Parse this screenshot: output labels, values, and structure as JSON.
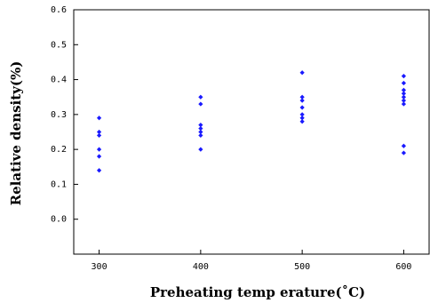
{
  "chart_data": {
    "type": "scatter",
    "title": "",
    "xlabel": "Preheating temp erature(˚C)",
    "ylabel": "Relative density(%)",
    "xlim": [
      275,
      625
    ],
    "ylim": [
      -0.1,
      0.6
    ],
    "x_ticks": [
      300,
      400,
      500,
      600
    ],
    "x_tick_labels": [
      "300",
      "400",
      "500",
      "600"
    ],
    "y_ticks": [
      0.0,
      0.1,
      0.2,
      0.3,
      0.4,
      0.5,
      0.6
    ],
    "y_tick_labels": [
      "0.0",
      "0.1",
      "0.2",
      "0.3",
      "0.4",
      "0.5",
      "0.6"
    ],
    "grid": false,
    "marker_color": "#1a1aff",
    "series": [
      {
        "points": [
          [
            300,
            0.29
          ],
          [
            300,
            0.25
          ],
          [
            300,
            0.24
          ],
          [
            300,
            0.2
          ],
          [
            300,
            0.18
          ],
          [
            300,
            0.14
          ],
          [
            400,
            0.35
          ],
          [
            400,
            0.33
          ],
          [
            400,
            0.27
          ],
          [
            400,
            0.26
          ],
          [
            400,
            0.25
          ],
          [
            400,
            0.24
          ],
          [
            400,
            0.2
          ],
          [
            500,
            0.42
          ],
          [
            500,
            0.35
          ],
          [
            500,
            0.34
          ],
          [
            500,
            0.32
          ],
          [
            500,
            0.3
          ],
          [
            500,
            0.29
          ],
          [
            500,
            0.28
          ],
          [
            600,
            0.41
          ],
          [
            600,
            0.39
          ],
          [
            600,
            0.37
          ],
          [
            600,
            0.36
          ],
          [
            600,
            0.35
          ],
          [
            600,
            0.34
          ],
          [
            600,
            0.33
          ],
          [
            600,
            0.21
          ],
          [
            600,
            0.19
          ]
        ]
      }
    ]
  }
}
